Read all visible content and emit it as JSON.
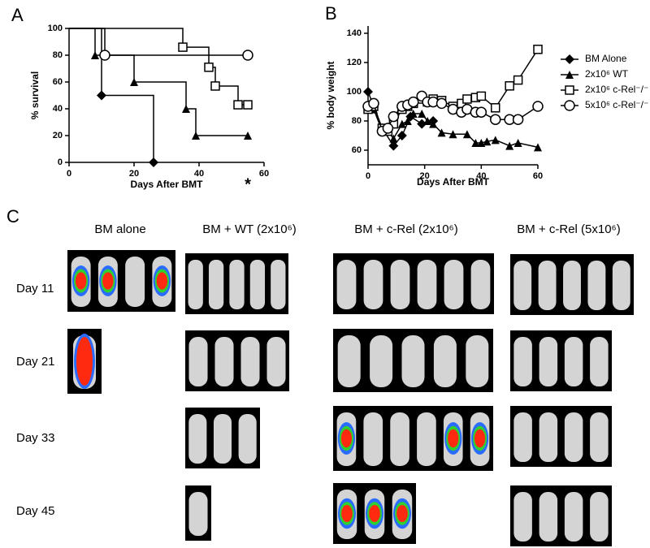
{
  "chart_data": [
    {
      "type": "step",
      "panel": "A",
      "ylabel": "% survival",
      "xlabel": "Days After BMT",
      "annotation": "*",
      "xlim": [
        0,
        60
      ],
      "xticks": [
        0,
        20,
        40,
        60
      ],
      "ylim": [
        0,
        100
      ],
      "yticks": [
        0,
        20,
        40,
        60,
        80,
        100
      ],
      "series": [
        {
          "name": "BM Alone",
          "marker": "diamond",
          "color": "#000000",
          "x": [
            0,
            10,
            26
          ],
          "values": [
            100,
            50,
            0
          ]
        },
        {
          "name": "2x10⁶ WT",
          "marker": "triangle",
          "color": "#000000",
          "x": [
            0,
            8,
            20,
            36,
            39,
            55
          ],
          "values": [
            100,
            80,
            60,
            40,
            20,
            20
          ]
        },
        {
          "name": "2x10⁶ c-Rel⁻/⁻",
          "marker": "square",
          "color": "#000000",
          "x": [
            0,
            35,
            43,
            45,
            52,
            55
          ],
          "values": [
            100,
            86,
            71,
            57,
            43,
            43
          ]
        },
        {
          "name": "5x10⁶ c-Rel⁻/⁻",
          "marker": "circle",
          "color": "#000000",
          "x": [
            0,
            11,
            55
          ],
          "values": [
            100,
            80,
            80
          ]
        }
      ]
    },
    {
      "type": "line",
      "panel": "B",
      "ylabel": "% body weight",
      "xlabel": "Days After BMT",
      "xlim": [
        0,
        60
      ],
      "xticks": [
        0,
        20,
        40,
        60
      ],
      "ylim": [
        50,
        145
      ],
      "yticks": [
        60,
        80,
        100,
        120,
        140
      ],
      "legend": "right",
      "series": [
        {
          "name": "BM Alone",
          "marker": "diamond",
          "color": "#000000",
          "x": [
            0,
            2,
            5,
            9,
            12,
            15,
            19,
            23
          ],
          "values": [
            100,
            90,
            75,
            63,
            70,
            83,
            78,
            80
          ]
        },
        {
          "name": "2x10⁶ WT",
          "marker": "triangle",
          "color": "#000000",
          "x": [
            0,
            2,
            5,
            7,
            9,
            12,
            14,
            16,
            19,
            21,
            23,
            26,
            30,
            35,
            38,
            40,
            42,
            45,
            50,
            53,
            60
          ],
          "values": [
            90,
            88,
            73,
            73,
            68,
            78,
            80,
            85,
            85,
            80,
            78,
            72,
            71,
            71,
            65,
            65,
            66,
            67,
            63,
            65,
            62
          ]
        },
        {
          "name": "2x10⁶ c-Rel⁻/⁻",
          "marker": "square",
          "color": "#000000",
          "x": [
            0,
            2,
            5,
            7,
            9,
            12,
            14,
            16,
            19,
            21,
            23,
            26,
            30,
            33,
            35,
            38,
            40,
            45,
            50,
            53,
            60
          ],
          "values": [
            88,
            90,
            75,
            73,
            78,
            88,
            90,
            92,
            95,
            93,
            95,
            94,
            90,
            92,
            95,
            96,
            97,
            89,
            104,
            108,
            129
          ]
        },
        {
          "name": "5x10⁶ c-Rel⁻/⁻",
          "marker": "circle",
          "color": "#000000",
          "x": [
            0,
            2,
            5,
            7,
            9,
            12,
            14,
            16,
            19,
            21,
            23,
            26,
            30,
            33,
            35,
            38,
            40,
            45,
            50,
            53,
            60
          ],
          "values": [
            90,
            92,
            73,
            75,
            83,
            90,
            91,
            93,
            97,
            93,
            93,
            92,
            88,
            86,
            88,
            86,
            86,
            81,
            81,
            81,
            90
          ]
        }
      ]
    }
  ],
  "panel_c": {
    "label": "C",
    "columns": [
      "BM alone",
      "BM + WT (2x10⁶)",
      "BM + c-Rel (2x10⁶)",
      "BM + c-Rel (5x10⁶)"
    ],
    "rows": [
      "Day 11",
      "Day 21",
      "Day 33",
      "Day 45"
    ]
  }
}
